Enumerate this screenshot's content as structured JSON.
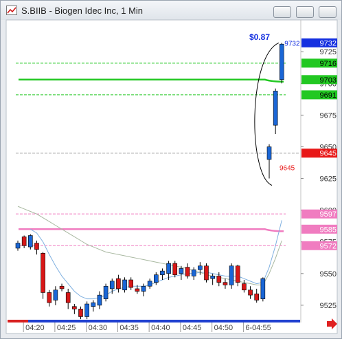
{
  "window": {
    "title": "S.BIIB - Biogen Idec Inc, 1 Min"
  },
  "chart_data": {
    "type": "candlestick",
    "categories": [
      null,
      "04:20",
      null,
      null,
      null,
      null,
      "04:25",
      null,
      null,
      null,
      null,
      "04:30",
      null,
      null,
      null,
      null,
      "04:35",
      null,
      null,
      null,
      null,
      "04:40",
      null,
      null,
      null,
      null,
      "04:45",
      null,
      null,
      null,
      null,
      "04:50",
      null,
      null,
      null,
      null,
      "6-04:55",
      null,
      null,
      null,
      null,
      null,
      null
    ],
    "open": [
      9570,
      9579,
      9571,
      9574,
      9566,
      9535,
      9529,
      9540,
      9535,
      9524,
      9522,
      9516,
      9524,
      9525,
      9530,
      9538,
      9546,
      9537,
      9545,
      9538,
      9536,
      9540,
      9543,
      9549,
      9550,
      9558,
      9550,
      9555,
      9548,
      9553,
      9556,
      9546,
      9548,
      9543,
      9541,
      9556,
      9542,
      9537,
      9534,
      9530,
      9640,
      9667,
      9703
    ],
    "high": [
      9576,
      9580,
      9581,
      9576,
      9567,
      9537,
      9540,
      9542,
      9538,
      9526,
      9524,
      9528,
      9529,
      9536,
      9542,
      9546,
      9549,
      9547,
      9547,
      9541,
      9542,
      9546,
      9551,
      9554,
      9560,
      9560,
      9556,
      9558,
      9555,
      9559,
      9558,
      9550,
      9551,
      9546,
      9558,
      9557,
      9545,
      9540,
      9538,
      9547,
      9652,
      9696,
      9732
    ],
    "low": [
      9568,
      9570,
      9569,
      9565,
      9530,
      9524,
      9525,
      9536,
      9522,
      9518,
      9514,
      9514,
      9520,
      9522,
      9528,
      9534,
      9535,
      9535,
      9537,
      9534,
      9532,
      9538,
      9541,
      9545,
      9545,
      9547,
      9545,
      9546,
      9545,
      9549,
      9543,
      9541,
      9540,
      9538,
      9538,
      9540,
      9535,
      9530,
      9527,
      9528,
      9625,
      9660,
      9700
    ],
    "close": [
      9574,
      9572,
      9580,
      9569,
      9535,
      9527,
      9537,
      9538,
      9527,
      9522,
      9516,
      9526,
      9527,
      9533,
      9540,
      9544,
      9538,
      9545,
      9539,
      9536,
      9540,
      9544,
      9549,
      9552,
      9558,
      9549,
      9554,
      9548,
      9553,
      9556,
      9545,
      9548,
      9543,
      9541,
      9556,
      9543,
      9537,
      9533,
      9529,
      9546,
      9650,
      9694,
      9731
    ],
    "up_color": "#1a66d6",
    "down_color": "#d81818",
    "series": [
      {
        "color": "#7fb0e0",
        "values": [
          null,
          null,
          9585,
          9582,
          9575,
          9565,
          9556,
          9548,
          9542,
          9536,
          9532,
          9530,
          9530,
          9531,
          9533,
          9536,
          9538,
          9539,
          9540,
          9540,
          9540,
          9541,
          9543,
          9545,
          9547,
          9548,
          9549,
          9550,
          9550,
          9551,
          9551,
          9550,
          9549,
          9548,
          9548,
          9548,
          9546,
          9544,
          9542,
          9543,
          9555,
          9572,
          9592
        ]
      },
      {
        "color": "#a8b8a0",
        "values": [
          9603,
          9601,
          9599,
          9597,
          9594,
          9591,
          9588,
          9585,
          9582,
          9579,
          9576,
          9573,
          9571,
          9569,
          9567,
          9566,
          9565,
          9564,
          9563,
          9562,
          9561,
          9560,
          9559,
          9558,
          9557,
          9556,
          9555,
          9554,
          9552,
          9551,
          9549,
          9548,
          9547,
          9546,
          9545,
          9544,
          9543,
          9542,
          9541,
          9541,
          9550,
          9562,
          9576
        ]
      }
    ],
    "levels": [
      {
        "value": 9732,
        "color": "#1530e0",
        "text_color": "#ffffff",
        "line": "none"
      },
      {
        "value": 9716,
        "color": "#22c822",
        "text_color": "#000000",
        "line": "dashed"
      },
      {
        "value": 9703,
        "color": "#22c822",
        "text_color": "#000000",
        "line": "solid"
      },
      {
        "value": 9691,
        "color": "#22c822",
        "text_color": "#000000",
        "line": "dashed"
      },
      {
        "value": 9645,
        "color": "#e81818",
        "text_color": "#ffffff",
        "line": "dashed-gray"
      },
      {
        "value": 9597,
        "color": "#f07cc0",
        "text_color": "#ffffff",
        "line": "dashed"
      },
      {
        "value": 9585,
        "color": "#f07cc0",
        "text_color": "#ffffff",
        "line": "solid"
      },
      {
        "value": 9572,
        "color": "#f07cc0",
        "text_color": "#ffffff",
        "line": "dashed"
      }
    ],
    "annotations": [
      "$0.87",
      "9732",
      "9645"
    ],
    "ylim": [
      9513,
      9749
    ],
    "yticks": [
      9525,
      9550,
      9575,
      9600,
      9625,
      9650,
      9675,
      9700,
      9725
    ]
  }
}
